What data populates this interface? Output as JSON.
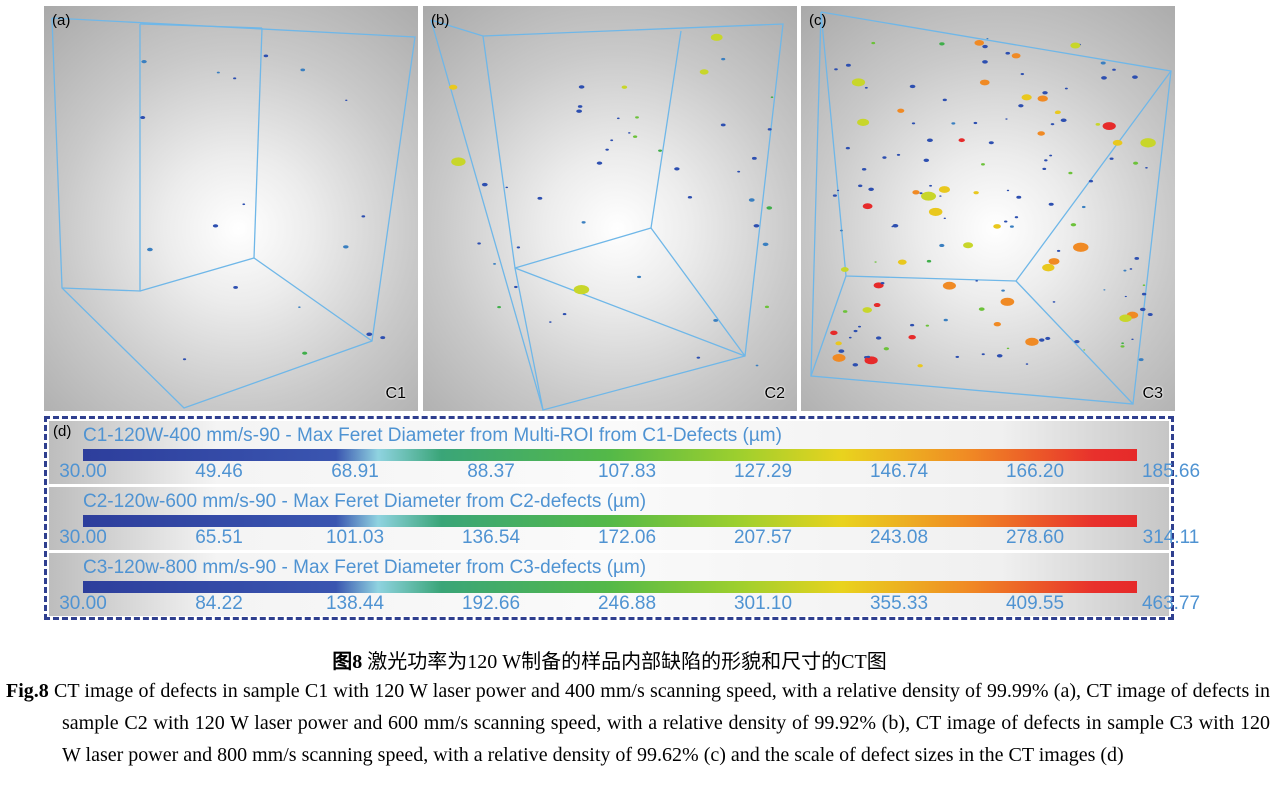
{
  "panels": [
    {
      "label": "(a)",
      "sample": "C1"
    },
    {
      "label": "(b)",
      "sample": "C2"
    },
    {
      "label": "(c)",
      "sample": "C3"
    }
  ],
  "scale": {
    "label": "(d)",
    "rows": [
      {
        "title": "C1-120W-400 mm/s-90 - Max Feret Diameter from Multi-ROI from C1-Defects (µm)",
        "ticks": [
          "30.00",
          "49.46",
          "68.91",
          "88.37",
          "107.83",
          "127.29",
          "146.74",
          "166.20",
          "185.66"
        ]
      },
      {
        "title": "C2-120w-600 mm/s-90 - Max Feret Diameter from C2-defects (µm)",
        "ticks": [
          "30.00",
          "65.51",
          "101.03",
          "136.54",
          "172.06",
          "207.57",
          "243.08",
          "278.60",
          "314.11"
        ]
      },
      {
        "title": "C3-120w-800 mm/s-90 - Max Feret Diameter from C3-defects (µm)",
        "ticks": [
          "30.00",
          "84.22",
          "138.44",
          "192.66",
          "246.88",
          "301.10",
          "355.33",
          "409.55",
          "463.77"
        ]
      }
    ],
    "colormap": [
      "#2d3e9c",
      "#8fd3e0",
      "#54b948",
      "#e9d31e",
      "#f08a24",
      "#e62a2a"
    ]
  },
  "caption": {
    "cn_label": "图8",
    "cn_text": " 激光功率为120 W制备的样品内部缺陷的形貌和尺寸的CT图",
    "en_label": "Fig.8",
    "en_text": " CT image of defects in sample C1 with 120 W laser power and 400 mm/s scanning speed, with a relative density of 99.99% (a), CT image of defects in sample C2 with 120 W laser power and 600 mm/s scanning speed, with a relative density of 99.92% (b), CT image of defects in sample C3 with 120 W laser power and 800 mm/s scanning speed, with a relative density of 99.62% (c) and the scale of defect sizes in the CT images (d)"
  },
  "colors": {
    "wireframe": "#6fb7e8",
    "border": "#2f3f8f",
    "scale_text": "#4f93d2"
  }
}
